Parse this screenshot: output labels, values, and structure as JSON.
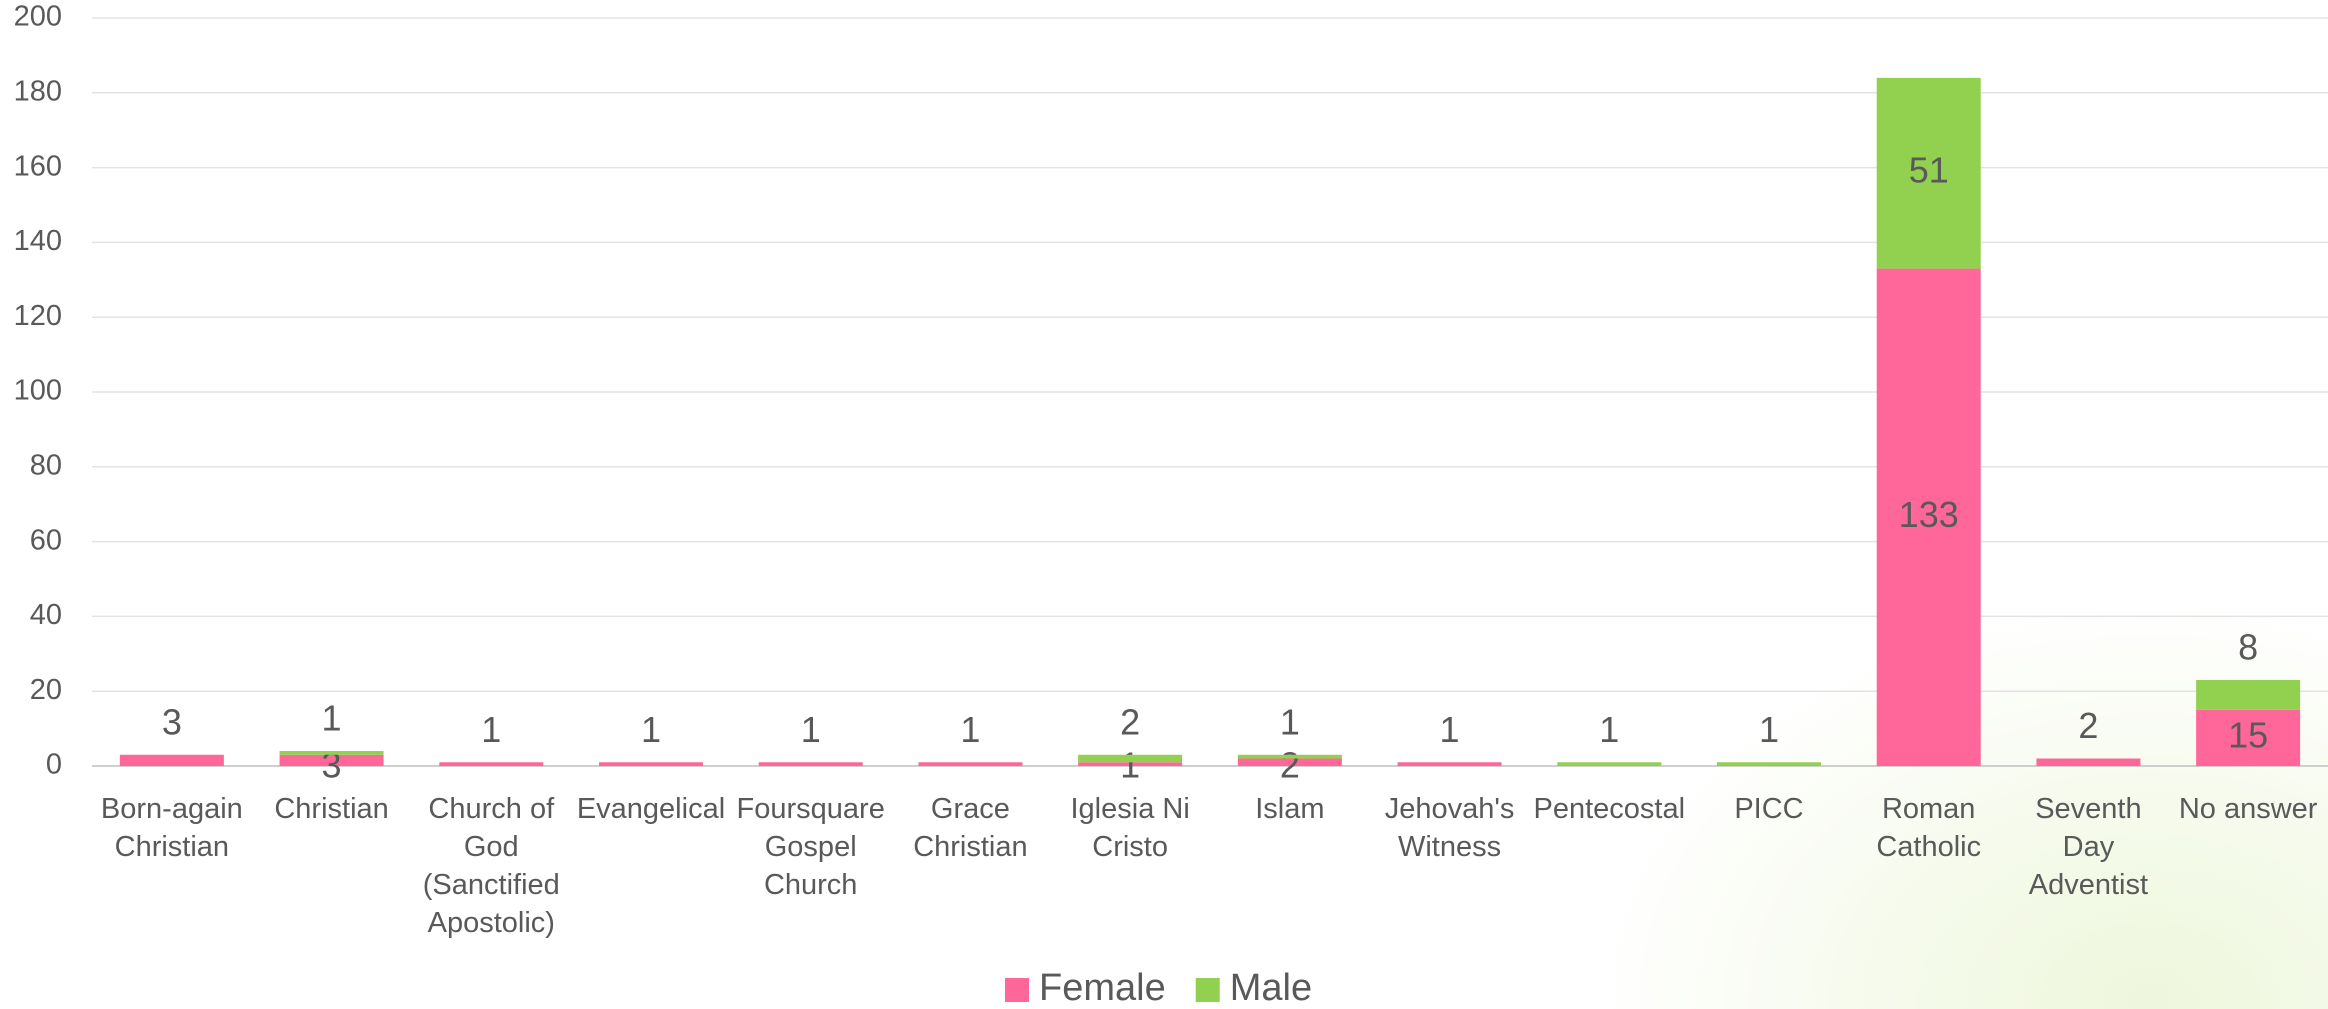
{
  "chart_data": {
    "type": "stacked_bar",
    "categories": [
      "Born-again Christian",
      "Christian",
      "Church of God (Sanctified Apostolic)",
      "Evangelical",
      "Foursquare Gospel Church",
      "Grace Christian",
      "Iglesia Ni Cristo",
      "Islam",
      "Jehovah's Witness",
      "Pentecostal",
      "PICC",
      "Roman Catholic",
      "Seventh Day Adventist",
      "No answer"
    ],
    "series": [
      {
        "name": "Female",
        "color": "#ff6699",
        "values": [
          3,
          3,
          1,
          1,
          1,
          1,
          1,
          2,
          1,
          null,
          null,
          133,
          2,
          15
        ]
      },
      {
        "name": "Male",
        "color": "#92d050",
        "values": [
          null,
          1,
          null,
          null,
          null,
          null,
          2,
          1,
          null,
          1,
          1,
          51,
          null,
          8
        ]
      }
    ],
    "ylim": [
      0,
      200
    ],
    "yticks": [
      0,
      20,
      40,
      60,
      80,
      100,
      120,
      140,
      160,
      180,
      200
    ],
    "grid": true,
    "legend": "bottom"
  }
}
